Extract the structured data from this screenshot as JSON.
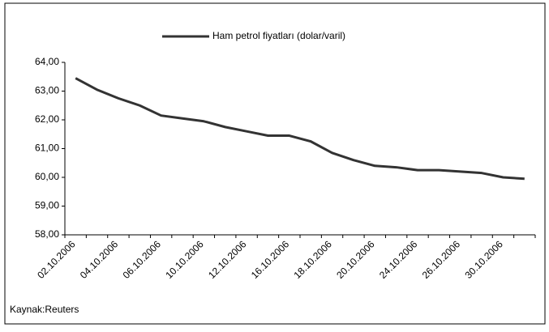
{
  "chart_data": {
    "type": "line",
    "legend_label": "Ham petrol fiyatları (dolar/varil)",
    "source": "Kaynak:Reuters",
    "categories": [
      "02.10.2006",
      null,
      "04.10.2006",
      null,
      "06.10.2006",
      null,
      "10.10.2006",
      null,
      "12.10.2006",
      null,
      "16.10.2006",
      null,
      "18.10.2006",
      null,
      "20.10.2006",
      null,
      "24.10.2006",
      null,
      "26.10.2006",
      null,
      "30.10.2006",
      null
    ],
    "series": [
      {
        "name": "Ham petrol fiyatları (dolar/varil)",
        "color": "#333333",
        "values": [
          63.45,
          63.05,
          62.75,
          62.5,
          62.15,
          62.05,
          61.95,
          61.75,
          61.6,
          61.45,
          61.45,
          61.25,
          60.85,
          60.6,
          60.4,
          60.35,
          60.25,
          60.25,
          60.2,
          60.15,
          60.0,
          59.95
        ]
      }
    ],
    "ylim": [
      58,
      64
    ],
    "yticks": [
      {
        "value": 58,
        "label": "58,00"
      },
      {
        "value": 59,
        "label": "59,00"
      },
      {
        "value": 60,
        "label": "60,00"
      },
      {
        "value": 61,
        "label": "61,00"
      },
      {
        "value": 62,
        "label": "62,00"
      },
      {
        "value": 63,
        "label": "63,00"
      },
      {
        "value": 64,
        "label": "64,00"
      }
    ]
  }
}
